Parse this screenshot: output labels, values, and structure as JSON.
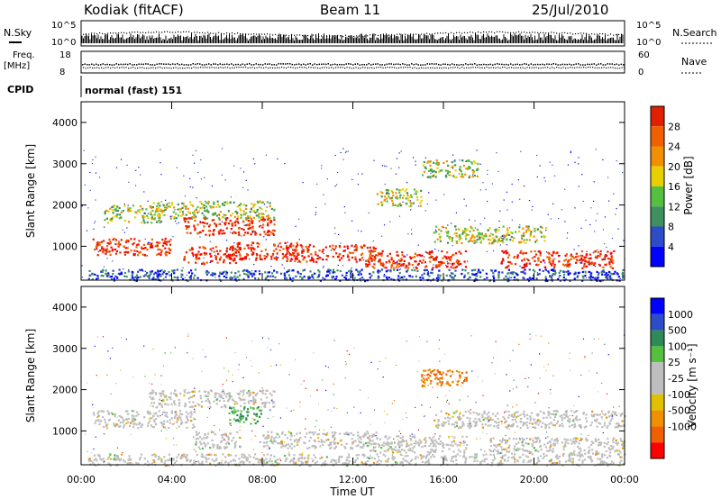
{
  "header": {
    "station": "Kodiak (fitACF)",
    "beam": "Beam 11",
    "date": "25/Jul/2010"
  },
  "noise_panel": {
    "left_label": "N.Sky",
    "right_label": "N.Search",
    "tick_high": "10^5",
    "tick_low": "10^0"
  },
  "freq_panel": {
    "left_label_1": "Freq.",
    "left_label_2": "[MHz]",
    "right_label": "Nave",
    "left_ticks": [
      "18",
      "8"
    ],
    "right_ticks": [
      "60",
      "0"
    ]
  },
  "cpid": {
    "label": "CPID",
    "value": "normal (fast) 151"
  },
  "colors": {
    "power": [
      "#0000ff",
      "#2c4cc8",
      "#3f8f60",
      "#55c040",
      "#e8d000",
      "#f09000",
      "#f06000",
      "#e02000",
      "#ff0000"
    ],
    "velocity": [
      "#ff0000",
      "#f06000",
      "#f09000",
      "#e0c000",
      "#bebebe",
      "#bebebe",
      "#55c040",
      "#2e8b57",
      "#2c4cc8",
      "#0000ff"
    ]
  },
  "chart_data": [
    {
      "type": "heatmap",
      "title": "",
      "xlabel": "",
      "ylabel": "Slant Range [km]",
      "xlim": [
        "00:00",
        "24:00"
      ],
      "ylim": [
        180,
        4500
      ],
      "yticks": [
        "1000",
        "2000",
        "3000",
        "4000"
      ],
      "colorbar": {
        "label": "Power [dB]",
        "ticks": [
          "4",
          "8",
          "12",
          "16",
          "20",
          "24",
          "28"
        ]
      },
      "echo_bands": [
        {
          "t_start": 0.3,
          "t_end": 24.0,
          "range_km": 250,
          "value": "weak"
        },
        {
          "t_start": 0.5,
          "t_end": 4.0,
          "range_km": 1000,
          "value": "strong"
        },
        {
          "t_start": 1.0,
          "t_end": 3.5,
          "range_km": 1800,
          "value": "moderate"
        },
        {
          "t_start": 3.0,
          "t_end": 8.5,
          "range_km": 1900,
          "value": "moderate"
        },
        {
          "t_start": 4.5,
          "t_end": 8.5,
          "range_km": 1500,
          "value": "strong"
        },
        {
          "t_start": 6.5,
          "t_end": 9.5,
          "range_km": 900,
          "value": "strong"
        },
        {
          "t_start": 4.5,
          "t_end": 7.0,
          "range_km": 800,
          "value": "strong"
        },
        {
          "t_start": 9.0,
          "t_end": 13.0,
          "range_km": 850,
          "value": "strong"
        },
        {
          "t_start": 12.5,
          "t_end": 17.0,
          "range_km": 700,
          "value": "strong"
        },
        {
          "t_start": 15.5,
          "t_end": 20.5,
          "range_km": 1300,
          "value": "moderate"
        },
        {
          "t_start": 18.5,
          "t_end": 23.5,
          "range_km": 700,
          "value": "strong"
        },
        {
          "t_start": 13.0,
          "t_end": 15.0,
          "range_km": 2200,
          "value": "moderate"
        },
        {
          "t_start": 15.0,
          "t_end": 17.5,
          "range_km": 2900,
          "value": "moderate"
        }
      ]
    },
    {
      "type": "heatmap",
      "title": "",
      "xlabel": "Time UT",
      "ylabel": "Slant Range [km]",
      "xlim": [
        "00:00",
        "24:00"
      ],
      "ylim": [
        180,
        4500
      ],
      "xticks": [
        "00:00",
        "04:00",
        "08:00",
        "12:00",
        "16:00",
        "20:00",
        "00:00"
      ],
      "yticks": [
        "1000",
        "2000",
        "3000",
        "4000"
      ],
      "colorbar": {
        "label": "Velocity [m s⁻¹]",
        "ticks": [
          "1000",
          "500",
          "100",
          "25",
          "-25",
          "-100",
          "-500",
          "-1000"
        ]
      },
      "echo_bands": [
        {
          "t_start": 0.3,
          "t_end": 24.0,
          "range_km": 250,
          "value": "ground scatter"
        },
        {
          "t_start": 0.5,
          "t_end": 5.0,
          "range_km": 1300,
          "value": "ground scatter"
        },
        {
          "t_start": 3.0,
          "t_end": 8.5,
          "range_km": 1800,
          "value": "ground scatter"
        },
        {
          "t_start": 6.5,
          "t_end": 8.0,
          "range_km": 1400,
          "value": "positive"
        },
        {
          "t_start": 5.0,
          "t_end": 7.0,
          "range_km": 800,
          "value": "ground scatter"
        },
        {
          "t_start": 8.0,
          "t_end": 13.0,
          "range_km": 800,
          "value": "ground scatter"
        },
        {
          "t_start": 12.5,
          "t_end": 17.0,
          "range_km": 700,
          "value": "ground scatter"
        },
        {
          "t_start": 15.0,
          "t_end": 17.0,
          "range_km": 2300,
          "value": "negative"
        },
        {
          "t_start": 15.5,
          "t_end": 24.0,
          "range_km": 1300,
          "value": "ground scatter"
        },
        {
          "t_start": 18.0,
          "t_end": 24.0,
          "range_km": 650,
          "value": "ground scatter"
        }
      ]
    }
  ]
}
